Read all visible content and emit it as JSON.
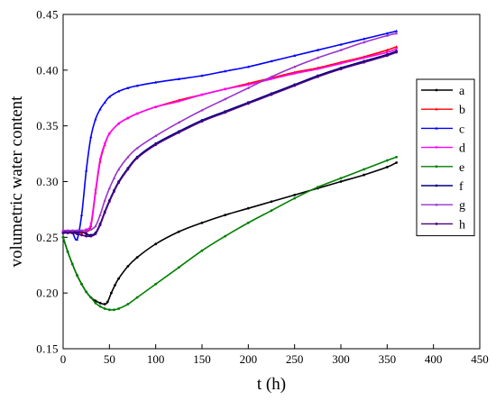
{
  "chart_data": {
    "type": "line",
    "title": "",
    "xlabel": "t (h)",
    "ylabel": "volumetric water content",
    "xlim": [
      0,
      450
    ],
    "ylim": [
      0.15,
      0.45
    ],
    "xticks": [
      0,
      50,
      100,
      150,
      200,
      250,
      300,
      350,
      400,
      450
    ],
    "yticks": [
      0.15,
      0.2,
      0.25,
      0.3,
      0.35,
      0.4,
      0.45
    ],
    "grid": false,
    "legend_position": "right",
    "series": [
      {
        "name": "a",
        "color": "#000000",
        "marker": "circle",
        "x": [
          0,
          5,
          10,
          15,
          20,
          25,
          30,
          35,
          40,
          45,
          48,
          52,
          56,
          60,
          70,
          80,
          100,
          125,
          150,
          175,
          200,
          225,
          250,
          275,
          300,
          325,
          350,
          360
        ],
        "y": [
          0.25,
          0.237,
          0.226,
          0.216,
          0.208,
          0.201,
          0.196,
          0.193,
          0.191,
          0.19,
          0.192,
          0.2,
          0.207,
          0.213,
          0.224,
          0.232,
          0.244,
          0.255,
          0.263,
          0.27,
          0.276,
          0.282,
          0.288,
          0.294,
          0.3,
          0.306,
          0.313,
          0.317
        ]
      },
      {
        "name": "b",
        "color": "#ff0000",
        "marker": "triangle",
        "x": [
          0,
          5,
          10,
          15,
          20,
          25,
          30,
          35,
          40,
          45,
          50,
          60,
          70,
          80,
          100,
          125,
          150,
          175,
          200,
          225,
          250,
          275,
          300,
          325,
          350,
          360
        ],
        "y": [
          0.254,
          0.254,
          0.254,
          0.254,
          0.254,
          0.255,
          0.26,
          0.29,
          0.318,
          0.333,
          0.343,
          0.352,
          0.357,
          0.361,
          0.367,
          0.373,
          0.378,
          0.383,
          0.388,
          0.393,
          0.398,
          0.402,
          0.407,
          0.412,
          0.418,
          0.421
        ]
      },
      {
        "name": "c",
        "color": "#0000ff",
        "marker": "triangle",
        "x": [
          0,
          5,
          10,
          15,
          20,
          25,
          30,
          35,
          40,
          45,
          50,
          60,
          70,
          80,
          100,
          125,
          150,
          175,
          200,
          225,
          250,
          275,
          300,
          325,
          350,
          360
        ],
        "y": [
          0.254,
          0.254,
          0.254,
          0.248,
          0.27,
          0.31,
          0.34,
          0.356,
          0.365,
          0.371,
          0.376,
          0.381,
          0.384,
          0.386,
          0.389,
          0.392,
          0.395,
          0.399,
          0.403,
          0.408,
          0.413,
          0.418,
          0.423,
          0.428,
          0.433,
          0.435
        ]
      },
      {
        "name": "d",
        "color": "#ff00ff",
        "marker": "triangle-down",
        "x": [
          0,
          5,
          10,
          15,
          20,
          25,
          30,
          35,
          40,
          45,
          50,
          60,
          70,
          80,
          100,
          125,
          150,
          175,
          200,
          225,
          250,
          275,
          300,
          325,
          350,
          360
        ],
        "y": [
          0.256,
          0.256,
          0.256,
          0.256,
          0.256,
          0.257,
          0.262,
          0.292,
          0.32,
          0.334,
          0.343,
          0.352,
          0.357,
          0.361,
          0.367,
          0.372,
          0.378,
          0.383,
          0.387,
          0.392,
          0.397,
          0.401,
          0.406,
          0.411,
          0.416,
          0.419
        ]
      },
      {
        "name": "e",
        "color": "#008000",
        "marker": "circle",
        "x": [
          0,
          5,
          10,
          15,
          20,
          25,
          30,
          35,
          40,
          45,
          50,
          55,
          60,
          70,
          80,
          100,
          125,
          150,
          175,
          200,
          225,
          250,
          275,
          300,
          325,
          350,
          360
        ],
        "y": [
          0.25,
          0.237,
          0.226,
          0.216,
          0.208,
          0.201,
          0.196,
          0.191,
          0.188,
          0.186,
          0.185,
          0.185,
          0.186,
          0.19,
          0.196,
          0.208,
          0.223,
          0.238,
          0.251,
          0.263,
          0.274,
          0.285,
          0.295,
          0.303,
          0.311,
          0.319,
          0.322
        ]
      },
      {
        "name": "f",
        "color": "#000080",
        "marker": "circle",
        "x": [
          0,
          5,
          10,
          15,
          20,
          25,
          30,
          35,
          40,
          45,
          50,
          55,
          60,
          70,
          80,
          100,
          125,
          150,
          175,
          200,
          225,
          250,
          275,
          300,
          325,
          350,
          360
        ],
        "y": [
          0.255,
          0.255,
          0.255,
          0.255,
          0.255,
          0.253,
          0.252,
          0.254,
          0.262,
          0.273,
          0.283,
          0.292,
          0.3,
          0.312,
          0.322,
          0.334,
          0.345,
          0.355,
          0.363,
          0.371,
          0.379,
          0.387,
          0.395,
          0.402,
          0.408,
          0.414,
          0.417
        ]
      },
      {
        "name": "g",
        "color": "#9932cc",
        "marker": "triangle",
        "x": [
          0,
          5,
          10,
          15,
          20,
          25,
          30,
          35,
          40,
          45,
          50,
          55,
          60,
          70,
          80,
          100,
          125,
          150,
          175,
          200,
          225,
          250,
          275,
          300,
          325,
          350,
          360
        ],
        "y": [
          0.256,
          0.256,
          0.256,
          0.256,
          0.256,
          0.256,
          0.257,
          0.26,
          0.27,
          0.283,
          0.294,
          0.303,
          0.311,
          0.322,
          0.33,
          0.341,
          0.353,
          0.364,
          0.374,
          0.384,
          0.394,
          0.403,
          0.411,
          0.418,
          0.425,
          0.431,
          0.433
        ]
      },
      {
        "name": "h",
        "color": "#4b0082",
        "marker": "circle",
        "x": [
          0,
          5,
          10,
          15,
          20,
          25,
          30,
          35,
          40,
          45,
          50,
          55,
          60,
          70,
          80,
          100,
          125,
          150,
          175,
          200,
          225,
          250,
          275,
          300,
          325,
          350,
          360
        ],
        "y": [
          0.254,
          0.254,
          0.254,
          0.253,
          0.252,
          0.251,
          0.251,
          0.253,
          0.261,
          0.272,
          0.282,
          0.291,
          0.299,
          0.311,
          0.321,
          0.333,
          0.344,
          0.354,
          0.362,
          0.37,
          0.378,
          0.386,
          0.394,
          0.401,
          0.407,
          0.413,
          0.416
        ]
      }
    ]
  }
}
